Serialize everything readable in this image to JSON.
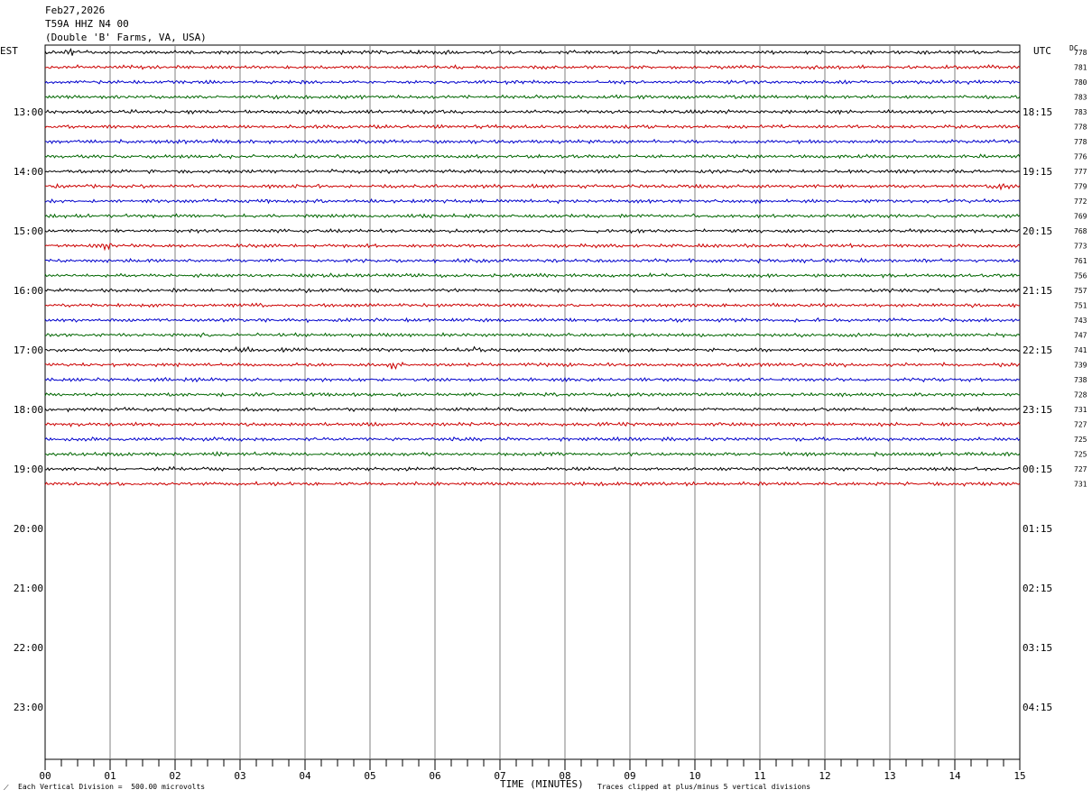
{
  "header": {
    "date": "Feb27,2026",
    "station": "T59A HHZ N4 00",
    "location": "(Double 'B' Farms, VA, USA)"
  },
  "left_axis_label": "EST",
  "right_axis_label": "UTC",
  "dc_label": "DC",
  "footer": {
    "scale_note": "Each Vertical Division =  500.00 microvolts",
    "xlabel": "TIME (MINUTES)",
    "clip_note": "Traces clipped at plus/minus 5 vertical divisions"
  },
  "colors": {
    "trace_cycle": [
      "#000000",
      "#cc0000",
      "#0000cc",
      "#006600"
    ],
    "grid": "#808080"
  },
  "chart_data": {
    "type": "line",
    "title": "T59A HHZ N4 00",
    "xlabel": "TIME (MINUTES)",
    "xlim": [
      0,
      15
    ],
    "x_ticks": [
      "00",
      "01",
      "02",
      "03",
      "04",
      "05",
      "06",
      "07",
      "08",
      "09",
      "10",
      "11",
      "12",
      "13",
      "14",
      "15"
    ],
    "est_hour_labels": [
      "13:00",
      "14:00",
      "15:00",
      "16:00",
      "17:00",
      "18:00",
      "19:00",
      "20:00",
      "21:00",
      "22:00",
      "23:00"
    ],
    "utc_hour_labels": [
      "18:15",
      "19:15",
      "20:15",
      "21:15",
      "22:15",
      "23:15",
      "00:15",
      "01:15",
      "02:15",
      "03:15",
      "04:15"
    ],
    "rows_per_hour": 4,
    "rows_total": 48,
    "rows_recorded": 30,
    "dc_offsets": [
      778,
      781,
      780,
      783,
      783,
      778,
      778,
      776,
      777,
      779,
      772,
      769,
      768,
      773,
      761,
      756,
      757,
      751,
      743,
      747,
      741,
      739,
      738,
      728,
      731,
      727,
      725,
      725,
      727,
      731
    ],
    "events": [
      {
        "row": 0,
        "minute": 0.4,
        "amp": 1.6
      },
      {
        "row": 6,
        "minute": 4.8,
        "amp": 1.4
      },
      {
        "row": 13,
        "minute": 0.9,
        "amp": 1.4
      },
      {
        "row": 20,
        "minute": 3.0,
        "amp": 1.3
      },
      {
        "row": 20,
        "minute": 6.6,
        "amp": 1.5
      },
      {
        "row": 21,
        "minute": 5.4,
        "amp": 2.2
      },
      {
        "row": 9,
        "minute": 14.7,
        "amp": 1.3
      }
    ]
  }
}
